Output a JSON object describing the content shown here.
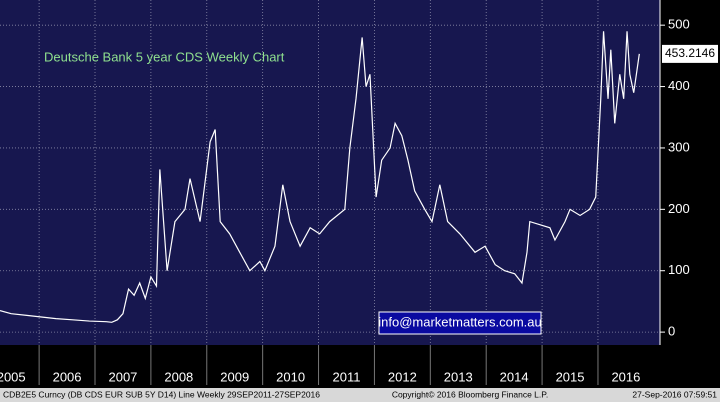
{
  "chart_data": {
    "type": "line",
    "title": "Deutsche Bank 5 year CDS Weekly Chart",
    "annotation": "info@marketmatters.com.au",
    "footer_left": "CDB2E5 Curncy (DB CDS EUR SUB 5Y D14) Line  Weekly 29SEP2011-27SEP2016",
    "footer_center": "Copyright© 2016 Bloomberg Finance L.P.",
    "footer_right": "27-Sep-2016 07:59:51",
    "color": "#ffffff",
    "x": [
      2005.3,
      2005.5,
      2005.8,
      2006.0,
      2006.3,
      2006.6,
      2006.9,
      2007.2,
      2007.3,
      2007.4,
      2007.5,
      2007.6,
      2007.7,
      2007.8,
      2007.9,
      2008.0,
      2008.1,
      2008.16,
      2008.29,
      2008.43,
      2008.61,
      2008.7,
      2008.88,
      2009.06,
      2009.15,
      2009.24,
      2009.41,
      2009.59,
      2009.77,
      2009.95,
      2010.04,
      2010.22,
      2010.36,
      2010.49,
      2010.67,
      2010.85,
      2011.02,
      2011.2,
      2011.47,
      2011.56,
      2011.67,
      2011.78,
      2011.85,
      2011.92,
      2012.03,
      2012.13,
      2012.28,
      2012.37,
      2012.49,
      2012.6,
      2012.72,
      2012.9,
      2013.03,
      2013.17,
      2013.31,
      2013.53,
      2013.8,
      2013.98,
      2014.16,
      2014.33,
      2014.51,
      2014.64,
      2014.73,
      2014.78,
      2014.96,
      2015.14,
      2015.23,
      2015.41,
      2015.5,
      2015.68,
      2015.85,
      2015.96,
      2016.05,
      2016.1,
      2016.18,
      2016.23,
      2016.3,
      2016.39,
      2016.46,
      2016.52,
      2016.57,
      2016.64,
      2016.74
    ],
    "values": [
      35,
      30,
      27,
      25,
      22,
      20,
      18,
      17,
      16,
      20,
      30,
      70,
      60,
      80,
      55,
      90,
      75,
      265,
      100,
      180,
      200,
      250,
      180,
      310,
      330,
      180,
      160,
      130,
      100,
      115,
      100,
      140,
      240,
      180,
      140,
      170,
      160,
      180,
      200,
      300,
      380,
      480,
      400,
      420,
      220,
      280,
      300,
      340,
      320,
      280,
      230,
      200,
      180,
      240,
      180,
      160,
      130,
      140,
      110,
      100,
      95,
      80,
      130,
      180,
      175,
      170,
      150,
      180,
      200,
      190,
      200,
      220,
      380,
      490,
      380,
      460,
      340,
      420,
      380,
      490,
      420,
      390,
      453.2146
    ],
    "xlim": [
      2005.3,
      2017.11
    ],
    "xticks": [
      2005,
      2006,
      2007,
      2008,
      2009,
      2010,
      2011,
      2012,
      2013,
      2014,
      2015,
      2016
    ],
    "ylim": [
      -21,
      541
    ],
    "yticks": [
      0,
      100,
      200,
      300,
      400,
      500
    ],
    "grid": true
  }
}
